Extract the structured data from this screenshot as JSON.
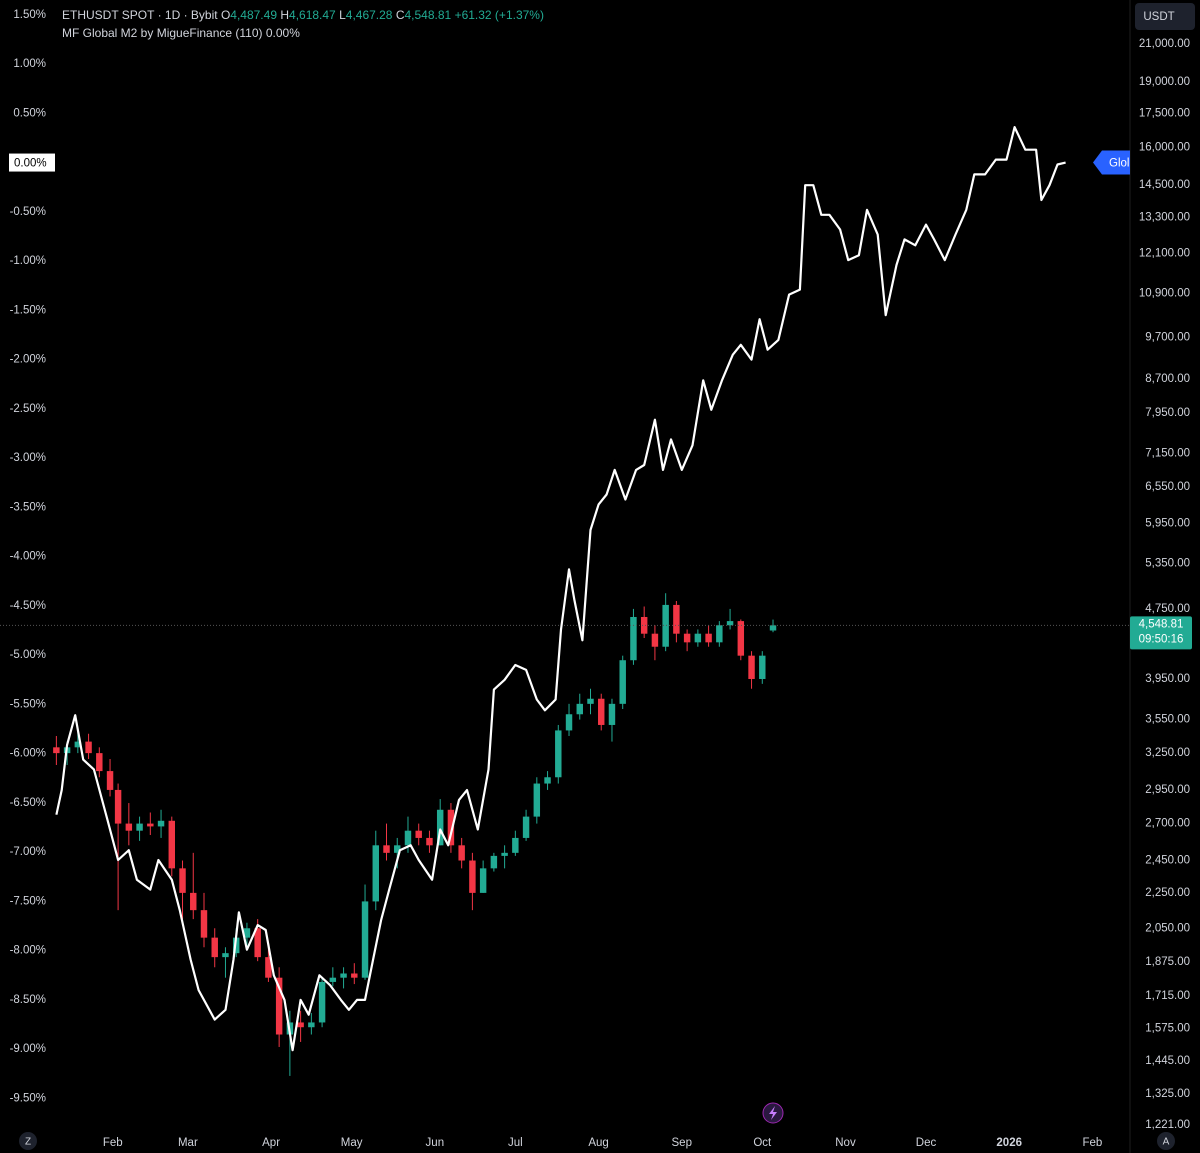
{
  "chart_data": {
    "type": "candlestick",
    "header": {
      "symbol": "ETHUSDT SPOT · 1D · Bybit",
      "o_key": "O",
      "o": "4,487.49",
      "h_key": "H",
      "h": "4,618.47",
      "l_key": "L",
      "l": "4,467.28",
      "c_key": "C",
      "c": "4,548.81",
      "change": "+61.32 (+1.37%)",
      "indicator": "MF Global M2 by MigueFinance (110)",
      "indicator_value": "0.00%"
    },
    "currency": "USDT",
    "xlim": [
      -11,
      410
    ],
    "xticks": [
      {
        "value": 31,
        "label": "Feb"
      },
      {
        "value": 59,
        "label": "Mar"
      },
      {
        "value": 90,
        "label": "Apr"
      },
      {
        "value": 120,
        "label": "May"
      },
      {
        "value": 151,
        "label": "Jun"
      },
      {
        "value": 181,
        "label": "Jul"
      },
      {
        "value": 212,
        "label": "Aug"
      },
      {
        "value": 243,
        "label": "Sep"
      },
      {
        "value": 273,
        "label": "Oct"
      },
      {
        "value": 304,
        "label": "Nov"
      },
      {
        "value": 334,
        "label": "Dec"
      },
      {
        "value": 365,
        "label": "2026",
        "bold": true
      },
      {
        "value": 396,
        "label": "Feb"
      }
    ],
    "ylim": [
      -9.8,
      1.65
    ],
    "yticks": [
      {
        "value": 1.5,
        "label": "1.50%"
      },
      {
        "value": 1,
        "label": "1.00%"
      },
      {
        "value": 0.5,
        "label": "0.50%"
      },
      {
        "value": -0.5,
        "label": "-0.50%"
      },
      {
        "value": -1,
        "label": "-1.00%"
      },
      {
        "value": -1.5,
        "label": "-1.50%"
      },
      {
        "value": -2,
        "label": "-2.00%"
      },
      {
        "value": -2.5,
        "label": "-2.50%"
      },
      {
        "value": -3,
        "label": "-3.00%"
      },
      {
        "value": -3.5,
        "label": "-3.50%"
      },
      {
        "value": -4,
        "label": "-4.00%"
      },
      {
        "value": -4.5,
        "label": "-4.50%"
      },
      {
        "value": -5,
        "label": "-5.00%"
      },
      {
        "value": -5.5,
        "label": "-5.50%"
      },
      {
        "value": -6,
        "label": "-6.00%"
      },
      {
        "value": -6.5,
        "label": "-6.50%"
      },
      {
        "value": -7,
        "label": "-7.00%"
      },
      {
        "value": -7.5,
        "label": "-7.50%"
      },
      {
        "value": -8,
        "label": "-8.00%"
      },
      {
        "value": -8.5,
        "label": "-8.50%"
      },
      {
        "value": -9,
        "label": "-9.00%"
      },
      {
        "value": -9.5,
        "label": "-9.50%"
      }
    ],
    "y2lim": [
      1212,
      23578
    ],
    "y2log": true,
    "y2ticks": [
      {
        "value": 21000,
        "label": "21,000.00"
      },
      {
        "value": 19000,
        "label": "19,000.00"
      },
      {
        "value": 17500,
        "label": "17,500.00"
      },
      {
        "value": 16000,
        "label": "16,000.00"
      },
      {
        "value": 14500,
        "label": "14,500.00"
      },
      {
        "value": 13300,
        "label": "13,300.00"
      },
      {
        "value": 12100,
        "label": "12,100.00"
      },
      {
        "value": 10900,
        "label": "10,900.00"
      },
      {
        "value": 9700,
        "label": "9,700.00"
      },
      {
        "value": 8700,
        "label": "8,700.00"
      },
      {
        "value": 7950,
        "label": "7,950.00"
      },
      {
        "value": 7150,
        "label": "7,150.00"
      },
      {
        "value": 6550,
        "label": "6,550.00"
      },
      {
        "value": 5950,
        "label": "5,950.00"
      },
      {
        "value": 5350,
        "label": "5,350.00"
      },
      {
        "value": 4750,
        "label": "4,750.00"
      },
      {
        "value": 3950,
        "label": "3,950.00"
      },
      {
        "value": 3550,
        "label": "3,550.00"
      },
      {
        "value": 3250,
        "label": "3,250.00"
      },
      {
        "value": 2950,
        "label": "2,950.00"
      },
      {
        "value": 2700,
        "label": "2,700.00"
      },
      {
        "value": 2450,
        "label": "2,450.00"
      },
      {
        "value": 2250,
        "label": "2,250.00"
      },
      {
        "value": 2050,
        "label": "2,050.00"
      },
      {
        "value": 1875,
        "label": "1,875.00"
      },
      {
        "value": 1715,
        "label": "1,715.00"
      },
      {
        "value": 1575,
        "label": "1,575.00"
      },
      {
        "value": 1445,
        "label": "1,445.00"
      },
      {
        "value": 1325,
        "label": "1,325.00"
      },
      {
        "value": 1221,
        "label": "1,221.00"
      }
    ],
    "grid": false,
    "candles": {
      "axis": "y2",
      "up_color": "#22ab94",
      "down_color": "#f23645",
      "x": [
        10,
        14,
        18,
        22,
        26,
        30,
        33,
        37,
        41,
        45,
        49,
        53,
        57,
        61,
        65,
        69,
        73,
        77,
        81,
        85,
        89,
        93,
        97,
        101,
        105,
        109,
        113,
        117,
        121,
        125,
        129,
        133,
        137,
        141,
        145,
        149,
        153,
        157,
        161,
        165,
        169,
        173,
        177,
        181,
        185,
        189,
        193,
        197,
        201,
        205,
        209,
        213,
        217,
        221,
        225,
        229,
        233,
        237,
        241,
        245,
        249,
        253,
        257,
        261,
        265,
        269,
        273,
        277
      ],
      "open": [
        3300,
        3250,
        3300,
        3350,
        3250,
        3100,
        2950,
        2700,
        2650,
        2700,
        2680,
        2720,
        2400,
        2250,
        2150,
        2000,
        1900,
        1920,
        2000,
        2050,
        1900,
        1800,
        1550,
        1600,
        1580,
        1600,
        1780,
        1800,
        1820,
        1800,
        2200,
        2550,
        2500,
        2550,
        2650,
        2600,
        2550,
        2800,
        2550,
        2450,
        2250,
        2400,
        2480,
        2500,
        2600,
        2750,
        3000,
        3050,
        3450,
        3600,
        3700,
        3750,
        3500,
        3700,
        4150,
        4650,
        4450,
        4300,
        4800,
        4450,
        4350,
        4450,
        4350,
        4550,
        4600,
        4200,
        3950,
        4487.49
      ],
      "high": [
        3400,
        3350,
        3450,
        3420,
        3300,
        3200,
        3000,
        2850,
        2750,
        2780,
        2800,
        2750,
        2450,
        2500,
        2250,
        2050,
        1950,
        2050,
        2080,
        2100,
        1950,
        1850,
        1650,
        1650,
        1640,
        1800,
        1850,
        1850,
        1870,
        2300,
        2650,
        2700,
        2600,
        2750,
        2700,
        2650,
        2880,
        2850,
        2600,
        2500,
        2450,
        2500,
        2550,
        2650,
        2800,
        3050,
        3100,
        3500,
        3700,
        3800,
        3850,
        3800,
        3750,
        4200,
        4750,
        4780,
        4550,
        4950,
        4850,
        4500,
        4500,
        4550,
        4600,
        4750,
        4620,
        4250,
        4250,
        4618.47
      ],
      "low": [
        3150,
        3150,
        3250,
        3200,
        3050,
        2900,
        2150,
        2550,
        2580,
        2620,
        2600,
        2350,
        2100,
        2100,
        1950,
        1850,
        1800,
        1900,
        1950,
        1880,
        1780,
        1500,
        1390,
        1520,
        1550,
        1580,
        1760,
        1750,
        1770,
        1790,
        2150,
        2450,
        2400,
        2500,
        2550,
        2500,
        2550,
        2500,
        2400,
        2150,
        2250,
        2380,
        2400,
        2480,
        2580,
        2700,
        2950,
        3000,
        3400,
        3550,
        3600,
        3450,
        3350,
        3650,
        4100,
        4400,
        4150,
        4250,
        4350,
        4250,
        4300,
        4300,
        4300,
        4500,
        4150,
        3850,
        3900,
        4467.28
      ],
      "close": [
        3250,
        3300,
        3350,
        3250,
        3100,
        2950,
        2700,
        2650,
        2700,
        2680,
        2720,
        2400,
        2250,
        2150,
        2000,
        1900,
        1920,
        2000,
        2050,
        1900,
        1800,
        1550,
        1600,
        1580,
        1600,
        1780,
        1800,
        1820,
        1800,
        2200,
        2550,
        2500,
        2550,
        2650,
        2600,
        2550,
        2800,
        2550,
        2450,
        2250,
        2400,
        2480,
        2500,
        2600,
        2750,
        3000,
        3050,
        3450,
        3600,
        3700,
        3750,
        3500,
        3700,
        4150,
        4650,
        4450,
        4300,
        4800,
        4450,
        4350,
        4450,
        4350,
        4550,
        4600,
        4200,
        3950,
        4200,
        4548.81
      ]
    },
    "last_price": {
      "value": 4548.81,
      "label": "4,548.81",
      "countdown": "09:50:16",
      "color": "#22ab94"
    },
    "m2": {
      "axis": "y",
      "color": "#ffffff",
      "tag": "Glol",
      "tag_color": "#2962ff",
      "last_label": "0.00%",
      "x": [
        10,
        12,
        14,
        17,
        20,
        24,
        29,
        33,
        37,
        40,
        45,
        48,
        53,
        56,
        60,
        63,
        69,
        73,
        76,
        78,
        81,
        85,
        88,
        91,
        95,
        98,
        101,
        104,
        108,
        112,
        116,
        119,
        122,
        125,
        128,
        131,
        134,
        138,
        142,
        145,
        150,
        153,
        156,
        160,
        163,
        167,
        171,
        173,
        177,
        181,
        185,
        189,
        192,
        196,
        198,
        201,
        203,
        206,
        209,
        212,
        215,
        218,
        222,
        226,
        229,
        233,
        236,
        239,
        243,
        247,
        251,
        254,
        258,
        262,
        265,
        269,
        272,
        275,
        279,
        283,
        287,
        289,
        292,
        295,
        298,
        302,
        305,
        309,
        312,
        316,
        319,
        323,
        326,
        330,
        334,
        337,
        341,
        345,
        349,
        352,
        356,
        360,
        364,
        367,
        371,
        375,
        377,
        380,
        383,
        386
      ],
      "values": [
        -6.62,
        -6.37,
        -5.91,
        -5.61,
        -6.06,
        -6.16,
        -6.67,
        -7.08,
        -6.98,
        -7.28,
        -7.38,
        -7.08,
        -7.28,
        -7.59,
        -8.09,
        -8.4,
        -8.7,
        -8.6,
        -8.09,
        -7.61,
        -7.99,
        -7.74,
        -7.79,
        -8.25,
        -8.5,
        -9.01,
        -8.5,
        -8.65,
        -8.25,
        -8.35,
        -8.5,
        -8.6,
        -8.5,
        -8.5,
        -8.09,
        -7.69,
        -7.38,
        -6.98,
        -6.93,
        -7.08,
        -7.28,
        -6.77,
        -6.93,
        -6.47,
        -6.37,
        -6.77,
        -6.16,
        -5.35,
        -5.25,
        -5.1,
        -5.15,
        -5.45,
        -5.56,
        -5.45,
        -4.74,
        -4.13,
        -4.44,
        -4.85,
        -3.73,
        -3.47,
        -3.37,
        -3.12,
        -3.42,
        -3.12,
        -3.07,
        -2.61,
        -3.12,
        -2.81,
        -3.12,
        -2.87,
        -2.21,
        -2.51,
        -2.21,
        -1.95,
        -1.85,
        -2,
        -1.59,
        -1.9,
        -1.8,
        -1.34,
        -1.29,
        -0.23,
        -0.23,
        -0.53,
        -0.53,
        -0.68,
        -0.99,
        -0.94,
        -0.48,
        -0.73,
        -1.55,
        -1.04,
        -0.78,
        -0.84,
        -0.63,
        -0.78,
        -0.99,
        -0.73,
        -0.48,
        -0.12,
        -0.12,
        0.03,
        0.03,
        0.36,
        0.13,
        0.13,
        -0.38,
        -0.23,
        -0.02,
        0
      ]
    },
    "corner_left": "Z",
    "corner_right": "A"
  }
}
